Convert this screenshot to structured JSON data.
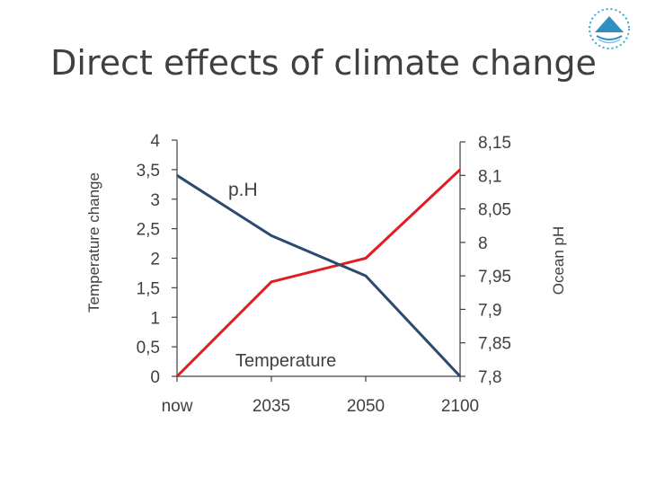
{
  "title": "Direct effects of climate change",
  "chart_data": {
    "type": "line",
    "categories": [
      "now",
      "2035",
      "2050",
      "2100"
    ],
    "series": [
      {
        "name": "Temperature",
        "axis": "left",
        "color": "#e31b23",
        "values": [
          0,
          1.6,
          2.0,
          3.5
        ]
      },
      {
        "name": "pH",
        "axis": "right",
        "color": "#2a4a6e",
        "values": [
          8.1,
          8.01,
          7.95,
          7.8
        ]
      }
    ],
    "annotations": {
      "ph_label": "p.H",
      "temp_label": "Temperature"
    },
    "left_axis": {
      "label": "Temperature change",
      "ylim": [
        0,
        4
      ],
      "tick_labels": [
        "0",
        "0,5",
        "1",
        "1,5",
        "2",
        "2,5",
        "3",
        "3,5",
        "4"
      ]
    },
    "right_axis": {
      "label": "Ocean pH",
      "ylim": [
        7.8,
        8.15
      ],
      "tick_labels": [
        "7,8",
        "7,85",
        "7,9",
        "7,95",
        "8",
        "8,05",
        "8,1",
        "8,15"
      ]
    }
  }
}
